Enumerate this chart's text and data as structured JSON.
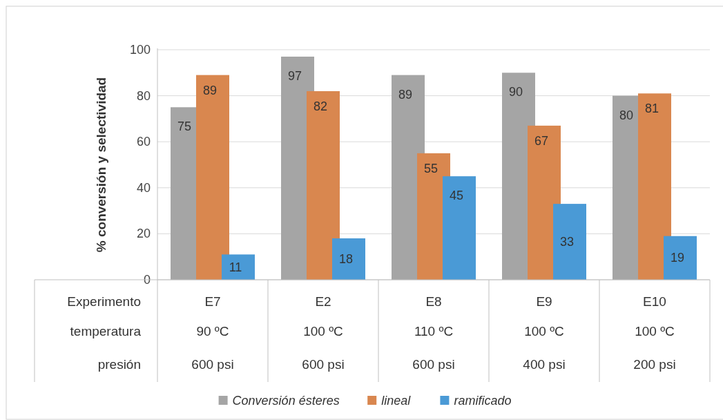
{
  "chart_data": {
    "type": "bar",
    "ylabel": "% conversión y selectividad",
    "categories": [
      "E7\n90 ºC\n600 psi",
      "E2\n100 ºC\n600 psi",
      "E8\n110 ºC\n600 psi",
      "E9\n100 ºC\n400 psi",
      "E10\n100 ºC\n200 psi"
    ],
    "annotations": [
      "Experimento",
      "temperatura",
      "presión"
    ],
    "series": [
      {
        "name": "Conversión ésteres",
        "color": "#a5a5a5",
        "values": [
          75,
          97,
          89,
          90,
          80
        ]
      },
      {
        "name": "lineal",
        "color": "#d9874f",
        "values": [
          89,
          82,
          55,
          67,
          81
        ]
      },
      {
        "name": "ramificado",
        "color": "#4a9ad6",
        "values": [
          11,
          18,
          45,
          33,
          19
        ]
      }
    ],
    "ylim": [
      0,
      100
    ],
    "yticks": [
      0,
      20,
      40,
      60,
      80,
      100
    ],
    "grid": "y",
    "legend": "bottom",
    "data_labels": true
  }
}
